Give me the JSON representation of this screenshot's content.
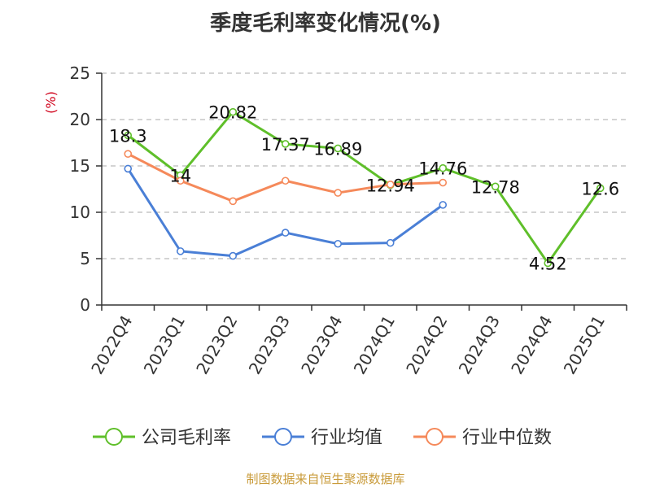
{
  "source": "制图数据来自恒生聚源数据库",
  "chart_data": {
    "type": "line",
    "title": "季度毛利率变化情况(%)",
    "ylabel": "(%)",
    "xlabel": "",
    "ylim": [
      0,
      25
    ],
    "yticks": [
      0,
      5,
      10,
      15,
      20,
      25
    ],
    "grid": true,
    "legend_position": "bottom",
    "categories": [
      "2022Q4",
      "2023Q1",
      "2023Q2",
      "2023Q3",
      "2023Q4",
      "2024Q1",
      "2024Q2",
      "2024Q3",
      "2024Q4",
      "2025Q1"
    ],
    "series": [
      {
        "name": "公司毛利率",
        "color": "#5fbf2a",
        "values": [
          18.3,
          14,
          20.82,
          17.37,
          16.89,
          12.94,
          14.76,
          12.78,
          4.52,
          12.6
        ],
        "labels": [
          "18.3",
          "14",
          "20.82",
          "17.37",
          "16.89",
          "12.94",
          "14.76",
          "12.78",
          "4.52",
          "12.6"
        ]
      },
      {
        "name": "行业均值",
        "color": "#4a7fd6",
        "values": [
          14.7,
          5.8,
          5.3,
          7.8,
          6.6,
          6.7,
          10.8,
          null,
          null,
          null
        ]
      },
      {
        "name": "行业中位数",
        "color": "#f5895a",
        "values": [
          16.3,
          13.4,
          11.2,
          13.4,
          12.1,
          13.0,
          13.2,
          null,
          null,
          null
        ]
      }
    ]
  }
}
